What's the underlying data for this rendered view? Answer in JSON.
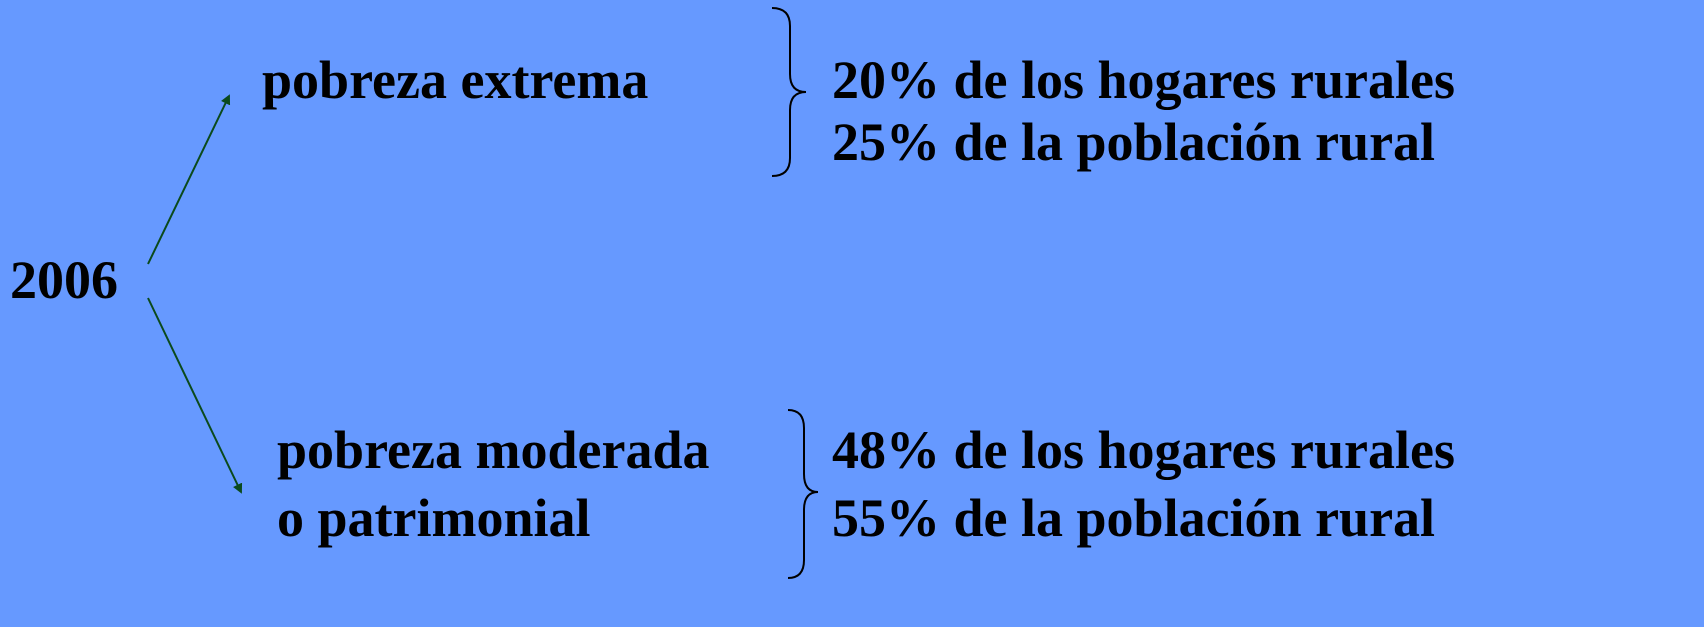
{
  "root": {
    "label": "2006"
  },
  "branches": [
    {
      "label": [
        "pobreza extrema"
      ],
      "details": [
        "20% de los hogares rurales",
        "25% de la población rural"
      ]
    },
    {
      "label": [
        "pobreza moderada",
        "o patrimonial"
      ],
      "details": [
        "48% de los hogares rurales",
        "55% de la población rural"
      ]
    }
  ]
}
